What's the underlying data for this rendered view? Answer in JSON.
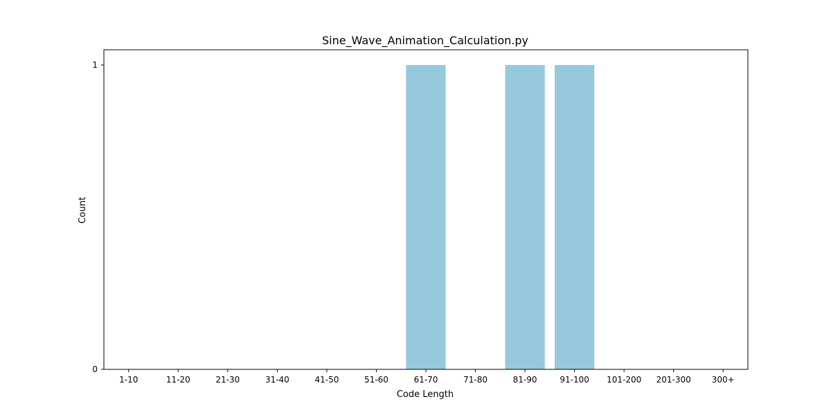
{
  "chart_data": {
    "type": "bar",
    "title": "Sine_Wave_Animation_Calculation.py",
    "xlabel": "Code Length",
    "ylabel": "Count",
    "categories": [
      "1-10",
      "11-20",
      "21-30",
      "31-40",
      "41-50",
      "51-60",
      "61-70",
      "71-80",
      "81-90",
      "91-100",
      "101-200",
      "201-300",
      "300+"
    ],
    "values": [
      0,
      0,
      0,
      0,
      0,
      0,
      1,
      0,
      1,
      1,
      0,
      0,
      0
    ],
    "yticks": [
      0,
      1
    ],
    "ylim": [
      0,
      1.05
    ],
    "grid": false,
    "bar_color": "#96c9dc"
  }
}
